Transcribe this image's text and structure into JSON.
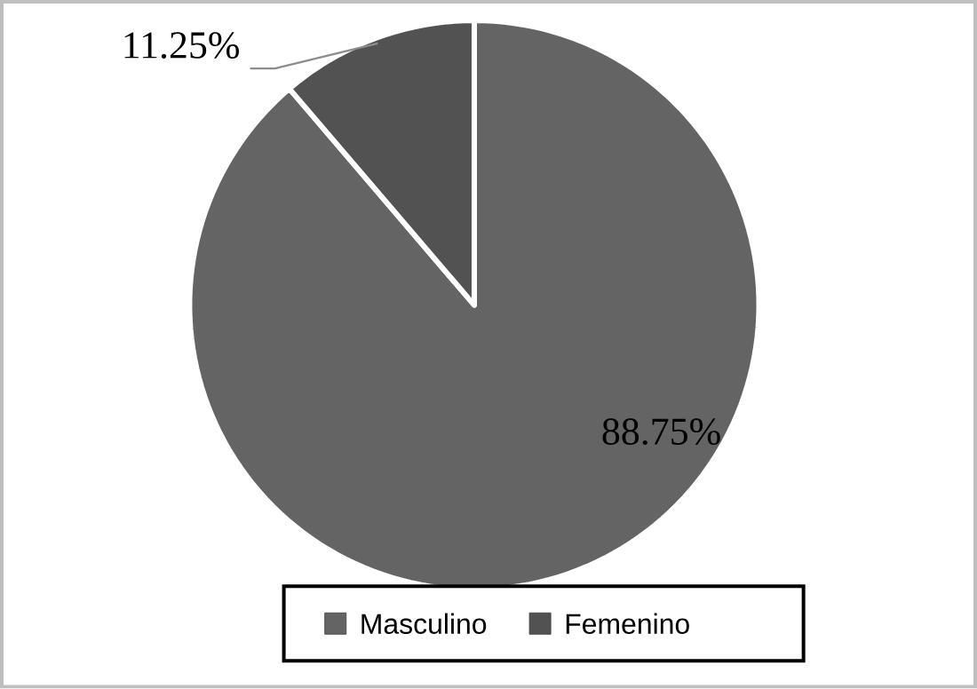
{
  "chart_data": {
    "type": "pie",
    "categories": [
      "Masculino",
      "Femenino"
    ],
    "values": [
      88.75,
      11.25
    ],
    "value_labels": [
      "88.75%",
      "11.25%"
    ],
    "colors": [
      "#646464",
      "#525252"
    ],
    "legend": "bottom"
  }
}
